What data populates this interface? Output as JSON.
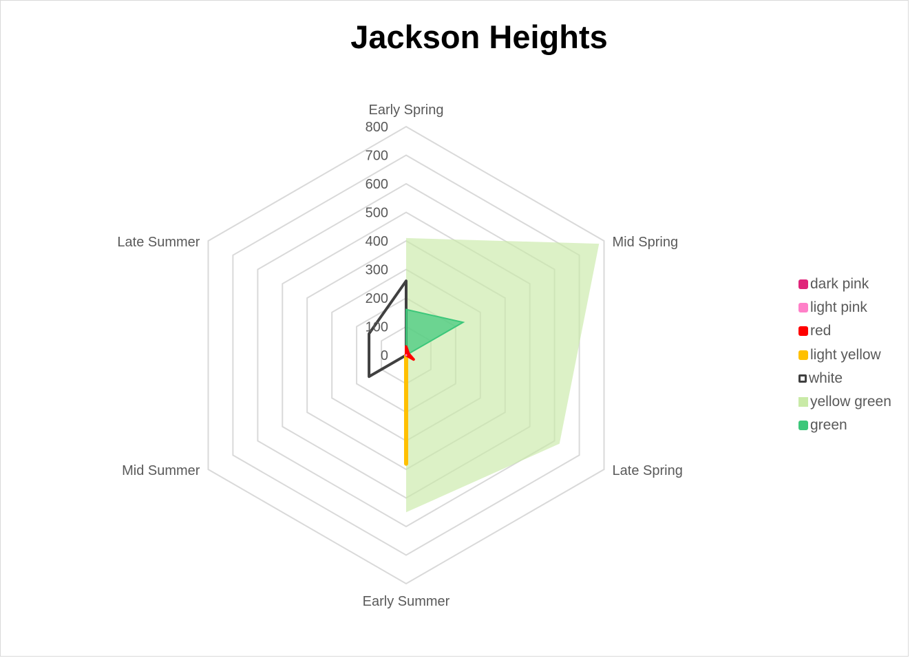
{
  "chart_data": {
    "type": "radar",
    "title": "Jackson Heights",
    "categories": [
      "Early Spring",
      "Mid Spring",
      "Late Spring",
      "Early Summer",
      "Mid Summer",
      "Late Summer"
    ],
    "radial_ticks": [
      "0",
      "100",
      "200",
      "300",
      "400",
      "500",
      "600",
      "700",
      "800"
    ],
    "rlim": [
      0,
      800
    ],
    "grid": true,
    "legend_position": "right",
    "series": [
      {
        "name": "dark pink",
        "values": [
          0,
          0,
          0,
          0,
          0,
          0
        ],
        "color": "#e0257a",
        "style": "marker"
      },
      {
        "name": "light pink",
        "values": [
          0,
          0,
          0,
          0,
          0,
          0
        ],
        "color": "#ff80c8",
        "style": "marker"
      },
      {
        "name": "red",
        "values": [
          30,
          10,
          30,
          0,
          0,
          0
        ],
        "color": "#ff0000",
        "style": "line"
      },
      {
        "name": "light yellow",
        "values": [
          0,
          0,
          0,
          380,
          0,
          0
        ],
        "color": "#ffc000",
        "style": "line"
      },
      {
        "name": "white",
        "values": [
          260,
          0,
          0,
          0,
          150,
          150
        ],
        "color": "#404040",
        "style": "line"
      },
      {
        "name": "yellow green",
        "values": [
          410,
          780,
          620,
          550,
          0,
          0
        ],
        "color": "#c9eaa7",
        "style": "area"
      },
      {
        "name": "green",
        "values": [
          160,
          230,
          0,
          0,
          0,
          0
        ],
        "color": "#3cc77a",
        "style": "area"
      }
    ]
  }
}
